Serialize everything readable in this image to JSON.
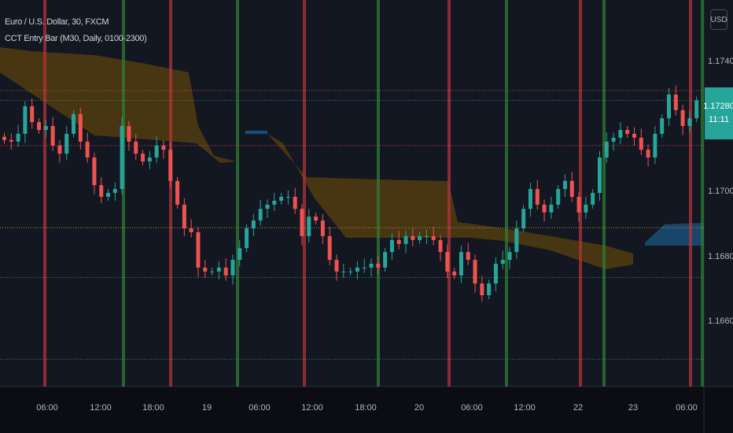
{
  "legend": {
    "symbol": "Euro / U.S. Dollar, 30, FXCM",
    "indicator": "CCT Entry Bar (M30, Daily, 0100-2300)"
  },
  "currency_button": "USD",
  "last_price": {
    "price": "1.17280",
    "countdown": "11:11"
  },
  "colors": {
    "background": "#131722",
    "up": "#26a69a",
    "down": "#ef5350",
    "red_session": "#b2343a",
    "green_session": "#2e7d32",
    "cloud": "#8a5a00",
    "blue_zone": "#1e5a8a"
  },
  "chart_data": {
    "type": "candlestick",
    "ylim": [
      1.1648,
      1.1759
    ],
    "y_ticks": [
      "1.17400",
      "1.17000",
      "1.16800",
      "1.16600"
    ],
    "x_ticks": [
      "06:00",
      "12:00",
      "18:00",
      "19",
      "06:00",
      "12:00",
      "18:00",
      "20",
      "06:00",
      "12:00",
      "22",
      "23",
      "06:00"
    ],
    "closes": [
      1.17158,
      1.17153,
      1.17177,
      1.17262,
      1.17213,
      1.17189,
      1.17201,
      1.17141,
      1.17116,
      1.17177,
      1.17238,
      1.17153,
      1.17104,
      1.17019,
      1.16983,
      1.16995,
      1.17007,
      1.17201,
      1.17153,
      1.17116,
      1.17092,
      1.17104,
      1.17141,
      1.17128,
      1.17032,
      1.16959,
      1.16886,
      1.16874,
      1.16765,
      1.16753,
      1.16753,
      1.16765,
      1.16741,
      1.16789,
      1.16825,
      1.16886,
      1.1691,
      1.16946,
      1.16959,
      1.16971,
      1.16983,
      1.16983,
      1.16946,
      1.16862,
      1.16922,
      1.1691,
      1.16862,
      1.16789,
      1.16753,
      1.16753,
      1.16753,
      1.16765,
      1.16765,
      1.16777,
      1.16765,
      1.16813,
      1.1685,
      1.16838,
      1.16862,
      1.1685,
      1.16862,
      1.16862,
      1.1685,
      1.16813,
      1.16753,
      1.16741,
      1.16813,
      1.16789,
      1.16716,
      1.1668,
      1.16716,
      1.16777,
      1.16789,
      1.16813,
      1.16886,
      1.16946,
      1.17007,
      1.16959,
      1.16935,
      1.16959,
      1.17007,
      1.17032,
      1.16983,
      1.16935,
      1.16959,
      1.16995,
      1.17104,
      1.17153,
      1.17165,
      1.17189,
      1.17177,
      1.17165,
      1.17128,
      1.17104,
      1.17177,
      1.17225,
      1.17298,
      1.1725,
      1.17201,
      1.17225,
      1.1728
    ],
    "horizontal_levels": [
      {
        "price": 1.1731,
        "color": "#ef5350"
      },
      {
        "price": 1.1728,
        "color": "#26a69a"
      },
      {
        "price": 1.17141,
        "color": "#ef5350"
      },
      {
        "price": 1.16888,
        "color": "#c9b037"
      },
      {
        "price": 1.16735,
        "color": "#4caf50"
      },
      {
        "price": 1.16483,
        "color": "#4caf50"
      }
    ],
    "session_lines": [
      "red",
      "green",
      "red",
      "green",
      "red",
      "green",
      "red",
      "green",
      "red",
      "green",
      "red",
      "green"
    ]
  }
}
